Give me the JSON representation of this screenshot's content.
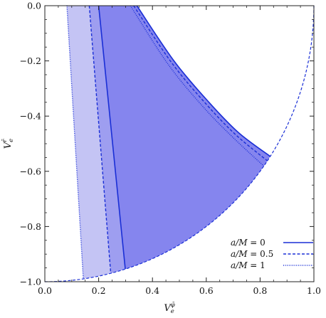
{
  "chart_data": {
    "type": "area",
    "xlabel": {
      "base": "V",
      "sub": "e",
      "sup": "φ̄"
    },
    "ylabel": {
      "base": "V",
      "sub": "e",
      "sup": "r̄"
    },
    "xlim": [
      0,
      1
    ],
    "ylim": [
      -1,
      0
    ],
    "x_ticks": [
      "0.0",
      "0.2",
      "0.4",
      "0.6",
      "0.8",
      "1.0"
    ],
    "x_tick_values": [
      0,
      0.2,
      0.4,
      0.6,
      0.8,
      1.0
    ],
    "y_ticks": [
      "0.0",
      "-0.2",
      "-0.4",
      "-0.6",
      "-0.8",
      "-1.0"
    ],
    "y_tick_values": [
      0,
      -0.2,
      -0.4,
      -0.6,
      -0.8,
      -1.0
    ],
    "grid": false,
    "legend_position": "bottom-right",
    "colors": {
      "light_fill": "#c4c4f4",
      "mid_fill": "#9e9ef0",
      "dark_fill": "#8585ee",
      "line": "#1a2fd6"
    },
    "unit_circle": {
      "style": "dashed"
    },
    "series": [
      {
        "name": "a/M = 0",
        "name_parts": {
          "var": "a/M",
          "eq": " = ",
          "val": "0"
        },
        "style": "solid",
        "inner_edge": [
          [
            0.2,
            0.0
          ],
          [
            0.299,
            -0.954
          ]
        ],
        "outer_edge": [
          [
            0.342,
            0.0
          ],
          [
            0.48,
            -0.2
          ],
          [
            0.61,
            -0.35
          ],
          [
            0.72,
            -0.46
          ],
          [
            0.838,
            -0.546
          ]
        ]
      },
      {
        "name": "a/M = 0.5",
        "name_parts": {
          "var": "a/M",
          "eq": " = ",
          "val": "0.5"
        },
        "style": "dashed",
        "inner_edge": [
          [
            0.165,
            0.0
          ],
          [
            0.245,
            -0.97
          ]
        ],
        "outer_edge": [
          [
            0.33,
            0.0
          ],
          [
            0.47,
            -0.205
          ],
          [
            0.6,
            -0.357
          ],
          [
            0.71,
            -0.468
          ],
          [
            0.827,
            -0.562
          ]
        ]
      },
      {
        "name": "a/M = 1",
        "name_parts": {
          "var": "a/M",
          "eq": " = ",
          "val": "1"
        },
        "style": "dotted",
        "inner_edge": [
          [
            0.082,
            0.0
          ],
          [
            0.143,
            -0.99
          ]
        ],
        "outer_edge": [
          [
            0.318,
            0.0
          ],
          [
            0.458,
            -0.212
          ],
          [
            0.588,
            -0.366
          ],
          [
            0.7,
            -0.478
          ],
          [
            0.814,
            -0.581
          ]
        ]
      }
    ]
  }
}
